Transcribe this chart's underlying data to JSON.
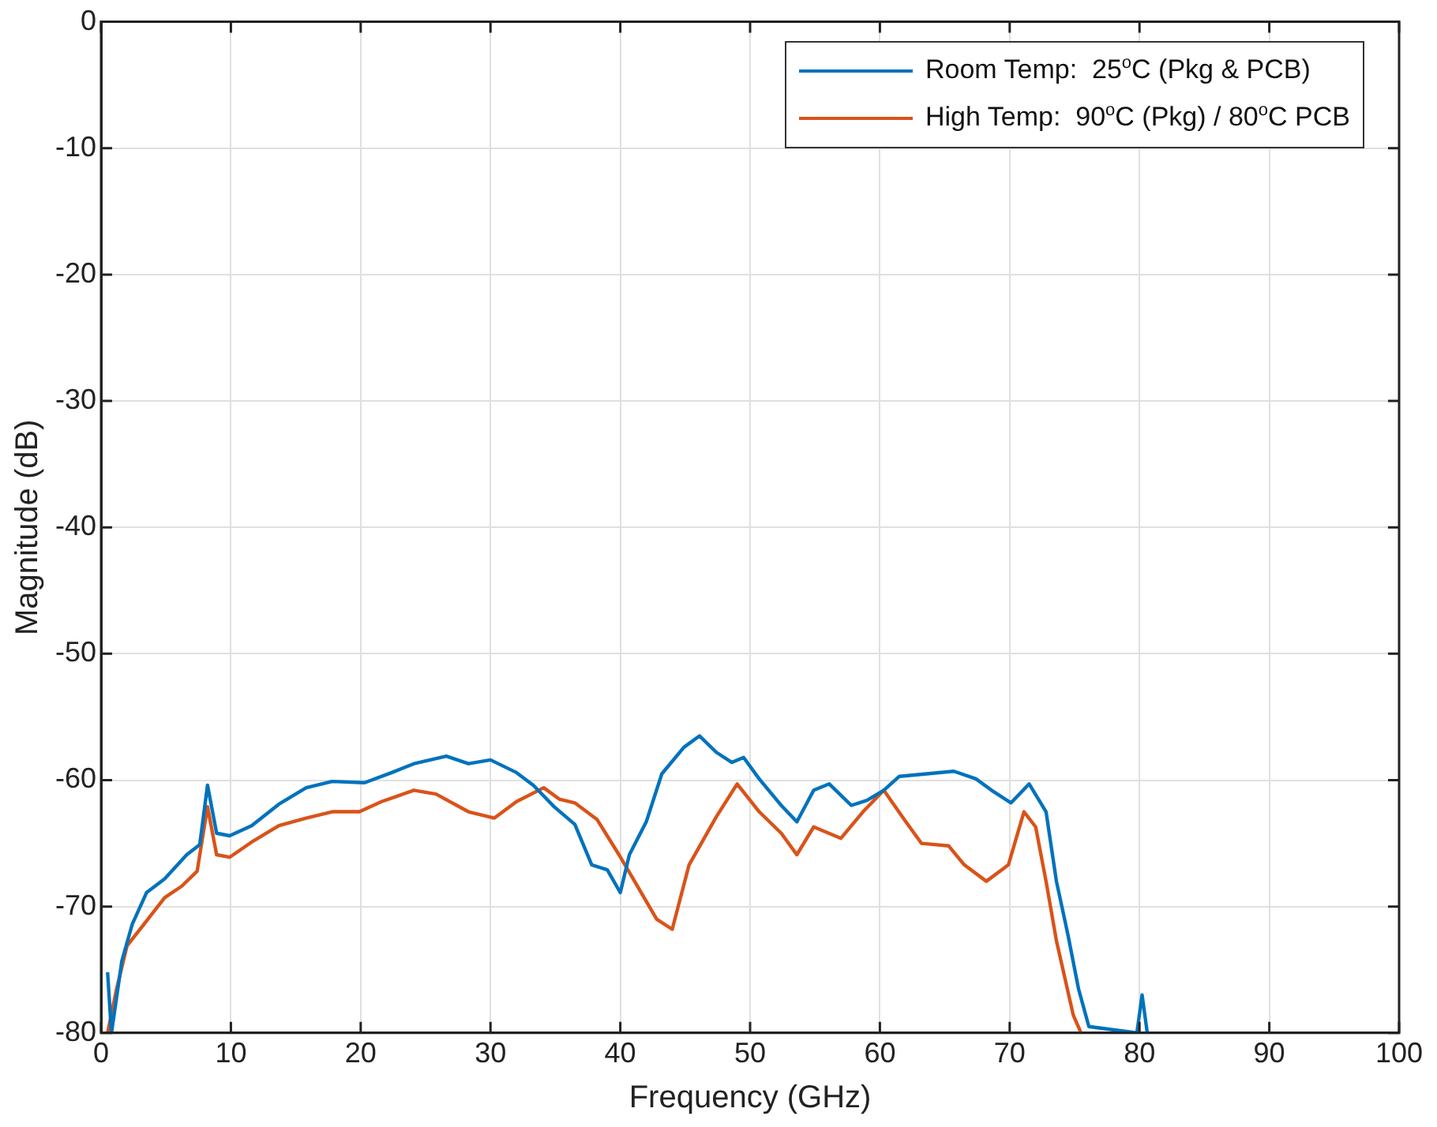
{
  "chart_data": {
    "type": "line",
    "xlabel": "Frequency (GHz)",
    "ylabel": "Magnitude (dB)",
    "xlim": [
      0,
      100
    ],
    "xticks": [
      0,
      10,
      20,
      30,
      40,
      50,
      60,
      70,
      80,
      90,
      100
    ],
    "ylim": [
      -80,
      0
    ],
    "yticks": [
      -80,
      -70,
      -60,
      -50,
      -40,
      -30,
      -20,
      -10,
      0
    ],
    "grid": true,
    "legend": "top right",
    "marker": "none",
    "line_style": "solid",
    "series": [
      {
        "name": "Room Temp:  25$^{o}$C (Pkg & PCB)",
        "color": "#0072bd",
        "x": [
          0.5,
          0.8,
          1.6,
          2.4,
          3.5,
          4.9,
          6.6,
          7.6,
          8.2,
          8.9,
          9.9,
          11.6,
          13.7,
          15.8,
          17.8,
          20.3,
          22.4,
          24.1,
          26.6,
          28.3,
          30,
          32,
          33.3,
          34.9,
          36.5,
          37.8,
          39,
          40,
          40.7,
          42,
          43.2,
          44.9,
          46.1,
          47.4,
          48.6,
          49.5,
          50.7,
          52.4,
          53.6,
          54.9,
          56.1,
          57.8,
          59,
          60.3,
          61.5,
          63.6,
          65.7,
          67.4,
          68.6,
          70.1,
          71.5,
          72.8,
          73.6,
          74.5,
          75.3,
          76.1,
          79.8,
          80.2,
          80.6
        ],
        "values": [
          -75.2,
          -80,
          -74.3,
          -71.4,
          -68.9,
          -67.8,
          -65.9,
          -65.1,
          -60.4,
          -64.2,
          -64.4,
          -63.6,
          -61.9,
          -60.6,
          -60.1,
          -60.2,
          -59.4,
          -58.7,
          -58.1,
          -58.7,
          -58.4,
          -59.4,
          -60.4,
          -62.1,
          -63.5,
          -66.7,
          -67.1,
          -68.9,
          -65.9,
          -63.3,
          -59.5,
          -57.4,
          -56.5,
          -57.8,
          -58.6,
          -58.2,
          -59.9,
          -62,
          -63.3,
          -60.8,
          -60.3,
          -62,
          -61.6,
          -60.8,
          -59.7,
          -59.5,
          -59.3,
          -59.9,
          -60.8,
          -61.8,
          -60.3,
          -62.5,
          -68,
          -72.3,
          -76.5,
          -79.5,
          -80,
          -77,
          -80
        ]
      },
      {
        "name": "High Temp:  90$^{o}$C (Pkg) / 80$^{o}$C PCB",
        "color": "#d95319",
        "x": [
          0.5,
          1.2,
          2,
          3.3,
          4.9,
          6.2,
          7.4,
          8.2,
          8.9,
          9.9,
          11.6,
          13.7,
          15.8,
          17.8,
          19.9,
          21.6,
          24.1,
          25.8,
          28.3,
          30.3,
          32,
          34.1,
          35.3,
          36.5,
          38.2,
          39.9,
          41.1,
          42.8,
          44,
          45.3,
          47.4,
          49,
          50.7,
          52.4,
          53.6,
          54.9,
          57,
          58.7,
          60.3,
          62,
          63.2,
          65.3,
          66.5,
          68.2,
          69.9,
          71.1,
          72,
          72.8,
          73.6,
          74.9,
          75.5
        ],
        "values": [
          -80,
          -76.5,
          -73.1,
          -71.4,
          -69.3,
          -68.4,
          -67.2,
          -62.1,
          -65.9,
          -66.1,
          -64.9,
          -63.6,
          -63,
          -62.5,
          -62.5,
          -61.7,
          -60.8,
          -61.1,
          -62.5,
          -63,
          -61.7,
          -60.6,
          -61.5,
          -61.8,
          -63.1,
          -65.9,
          -68,
          -71,
          -71.8,
          -66.7,
          -62.9,
          -60.3,
          -62.5,
          -64.2,
          -65.9,
          -63.7,
          -64.6,
          -62.5,
          -60.8,
          -63.3,
          -65,
          -65.2,
          -66.7,
          -68,
          -66.7,
          -62.5,
          -63.7,
          -68,
          -72.7,
          -78.6,
          -80
        ]
      }
    ]
  }
}
